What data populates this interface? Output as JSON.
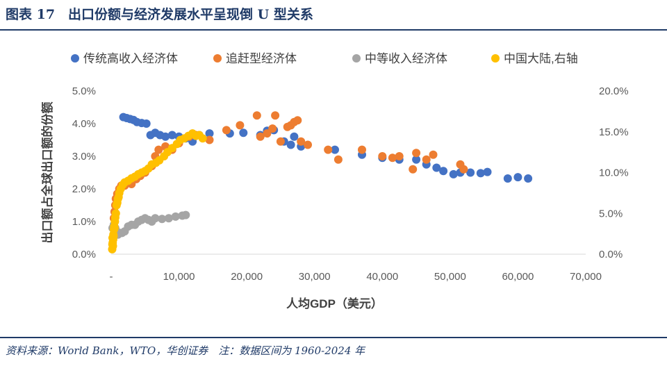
{
  "figure": {
    "title": "图表 17　出口份额与经济发展水平呈现倒 U 型关系",
    "source": "资料来源：World Bank，WTO，华创证券　注：数据区间为 1960-2024 年"
  },
  "chart_data": {
    "type": "scatter",
    "xlabel": "人均GDP（美元）",
    "ylabel": "出口额占全球出口额的份额",
    "xlim": [
      0,
      70000
    ],
    "ylim": [
      0,
      0.05
    ],
    "y2lim": [
      0,
      0.2
    ],
    "x_ticks": [
      "-",
      "10,000",
      "20,000",
      "30,000",
      "40,000",
      "50,000",
      "60,000",
      "70,000"
    ],
    "y_ticks": [
      "0.0%",
      "1.0%",
      "2.0%",
      "3.0%",
      "4.0%",
      "5.0%"
    ],
    "y2_ticks": [
      "0.0%",
      "5.0%",
      "10.0%",
      "15.0%",
      "20.0%"
    ],
    "legend_position": "top",
    "grid": false,
    "series": [
      {
        "name": "传统高收入经济体",
        "color": "#4472c4",
        "axis": "left",
        "points": [
          [
            1800,
            0.042
          ],
          [
            2300,
            0.0417
          ],
          [
            2800,
            0.0414
          ],
          [
            3300,
            0.0411
          ],
          [
            3800,
            0.0405
          ],
          [
            4500,
            0.0402
          ],
          [
            5200,
            0.04
          ],
          [
            5800,
            0.0365
          ],
          [
            6500,
            0.0372
          ],
          [
            7200,
            0.0365
          ],
          [
            8000,
            0.036
          ],
          [
            9000,
            0.0365
          ],
          [
            10000,
            0.036
          ],
          [
            11000,
            0.0355
          ],
          [
            12000,
            0.0345
          ],
          [
            13000,
            0.0365
          ],
          [
            14500,
            0.037
          ],
          [
            17500,
            0.037
          ],
          [
            19500,
            0.0372
          ],
          [
            22000,
            0.0365
          ],
          [
            23000,
            0.0378
          ],
          [
            24000,
            0.038
          ],
          [
            25500,
            0.0345
          ],
          [
            26500,
            0.0335
          ],
          [
            27000,
            0.036
          ],
          [
            28000,
            0.033
          ],
          [
            33000,
            0.032
          ],
          [
            37000,
            0.0305
          ],
          [
            40000,
            0.0295
          ],
          [
            42500,
            0.029
          ],
          [
            45000,
            0.029
          ],
          [
            46500,
            0.0275
          ],
          [
            48000,
            0.0265
          ],
          [
            49000,
            0.0255
          ],
          [
            50500,
            0.0245
          ],
          [
            51500,
            0.025
          ],
          [
            53000,
            0.025
          ],
          [
            54500,
            0.0248
          ],
          [
            55500,
            0.0252
          ],
          [
            58500,
            0.0232
          ],
          [
            60000,
            0.0236
          ],
          [
            61500,
            0.0232
          ]
        ]
      },
      {
        "name": "追赶型经济体",
        "color": "#ed7d31",
        "axis": "left",
        "points": [
          [
            400,
            0.011
          ],
          [
            500,
            0.013
          ],
          [
            600,
            0.015
          ],
          [
            700,
            0.017
          ],
          [
            900,
            0.0185
          ],
          [
            1200,
            0.02
          ],
          [
            1500,
            0.021
          ],
          [
            2000,
            0.021
          ],
          [
            3000,
            0.0215
          ],
          [
            3700,
            0.023
          ],
          [
            4300,
            0.024
          ],
          [
            5000,
            0.025
          ],
          [
            6000,
            0.027
          ],
          [
            6500,
            0.03
          ],
          [
            7000,
            0.032
          ],
          [
            8000,
            0.033
          ],
          [
            9000,
            0.032
          ],
          [
            10000,
            0.034
          ],
          [
            11500,
            0.036
          ],
          [
            12500,
            0.0365
          ],
          [
            14500,
            0.035
          ],
          [
            17000,
            0.038
          ],
          [
            19000,
            0.0395
          ],
          [
            21500,
            0.0425
          ],
          [
            22000,
            0.036
          ],
          [
            23000,
            0.037
          ],
          [
            23800,
            0.0385
          ],
          [
            24200,
            0.0425
          ],
          [
            25000,
            0.0345
          ],
          [
            26000,
            0.039
          ],
          [
            26500,
            0.0395
          ],
          [
            27000,
            0.0405
          ],
          [
            27500,
            0.041
          ],
          [
            28000,
            0.0345
          ],
          [
            29000,
            0.0335
          ],
          [
            32000,
            0.032
          ],
          [
            33500,
            0.029
          ],
          [
            37000,
            0.032
          ],
          [
            40000,
            0.03
          ],
          [
            41500,
            0.0295
          ],
          [
            42500,
            0.03
          ],
          [
            44500,
            0.026
          ],
          [
            45000,
            0.031
          ],
          [
            46500,
            0.029
          ],
          [
            47500,
            0.0305
          ],
          [
            51500,
            0.0275
          ],
          [
            52000,
            0.026
          ]
        ]
      },
      {
        "name": "中等收入经济体",
        "color": "#a5a5a5",
        "axis": "left",
        "points": [
          [
            200,
            0.008
          ],
          [
            400,
            0.009
          ],
          [
            600,
            0.008
          ],
          [
            800,
            0.007
          ],
          [
            1000,
            0.006
          ],
          [
            1300,
            0.0065
          ],
          [
            1600,
            0.0065
          ],
          [
            2000,
            0.007
          ],
          [
            2500,
            0.0085
          ],
          [
            3000,
            0.009
          ],
          [
            3500,
            0.009
          ],
          [
            4000,
            0.01
          ],
          [
            4500,
            0.0105
          ],
          [
            5000,
            0.011
          ],
          [
            5500,
            0.0105
          ],
          [
            6000,
            0.01
          ],
          [
            6500,
            0.011
          ],
          [
            7500,
            0.0108
          ],
          [
            8500,
            0.011
          ],
          [
            9500,
            0.0115
          ],
          [
            10500,
            0.0118
          ],
          [
            11000,
            0.012
          ]
        ]
      },
      {
        "name": "中国大陆,右轴",
        "color": "#ffc000",
        "axis": "right",
        "points": [
          [
            150,
            0.006
          ],
          [
            180,
            0.012
          ],
          [
            200,
            0.02
          ],
          [
            230,
            0.014
          ],
          [
            260,
            0.01
          ],
          [
            300,
            0.018
          ],
          [
            330,
            0.024
          ],
          [
            360,
            0.022
          ],
          [
            400,
            0.03
          ],
          [
            450,
            0.034
          ],
          [
            500,
            0.032
          ],
          [
            550,
            0.04
          ],
          [
            600,
            0.045
          ],
          [
            700,
            0.05
          ],
          [
            800,
            0.06
          ],
          [
            900,
            0.063
          ],
          [
            1000,
            0.068
          ],
          [
            1100,
            0.07
          ],
          [
            1200,
            0.075
          ],
          [
            1400,
            0.08
          ],
          [
            1700,
            0.085
          ],
          [
            2000,
            0.088
          ],
          [
            2500,
            0.09
          ],
          [
            3000,
            0.093
          ],
          [
            3500,
            0.095
          ],
          [
            4000,
            0.098
          ],
          [
            4500,
            0.1
          ],
          [
            5000,
            0.102
          ],
          [
            5500,
            0.105
          ],
          [
            6000,
            0.11
          ],
          [
            6600,
            0.112
          ],
          [
            7100,
            0.115
          ],
          [
            7800,
            0.12
          ],
          [
            8300,
            0.125
          ],
          [
            9000,
            0.13
          ],
          [
            9700,
            0.135
          ],
          [
            10200,
            0.14
          ],
          [
            10800,
            0.142
          ],
          [
            11400,
            0.145
          ],
          [
            12000,
            0.148
          ],
          [
            12500,
            0.145
          ],
          [
            13000,
            0.146
          ],
          [
            13500,
            0.142
          ]
        ]
      }
    ]
  }
}
